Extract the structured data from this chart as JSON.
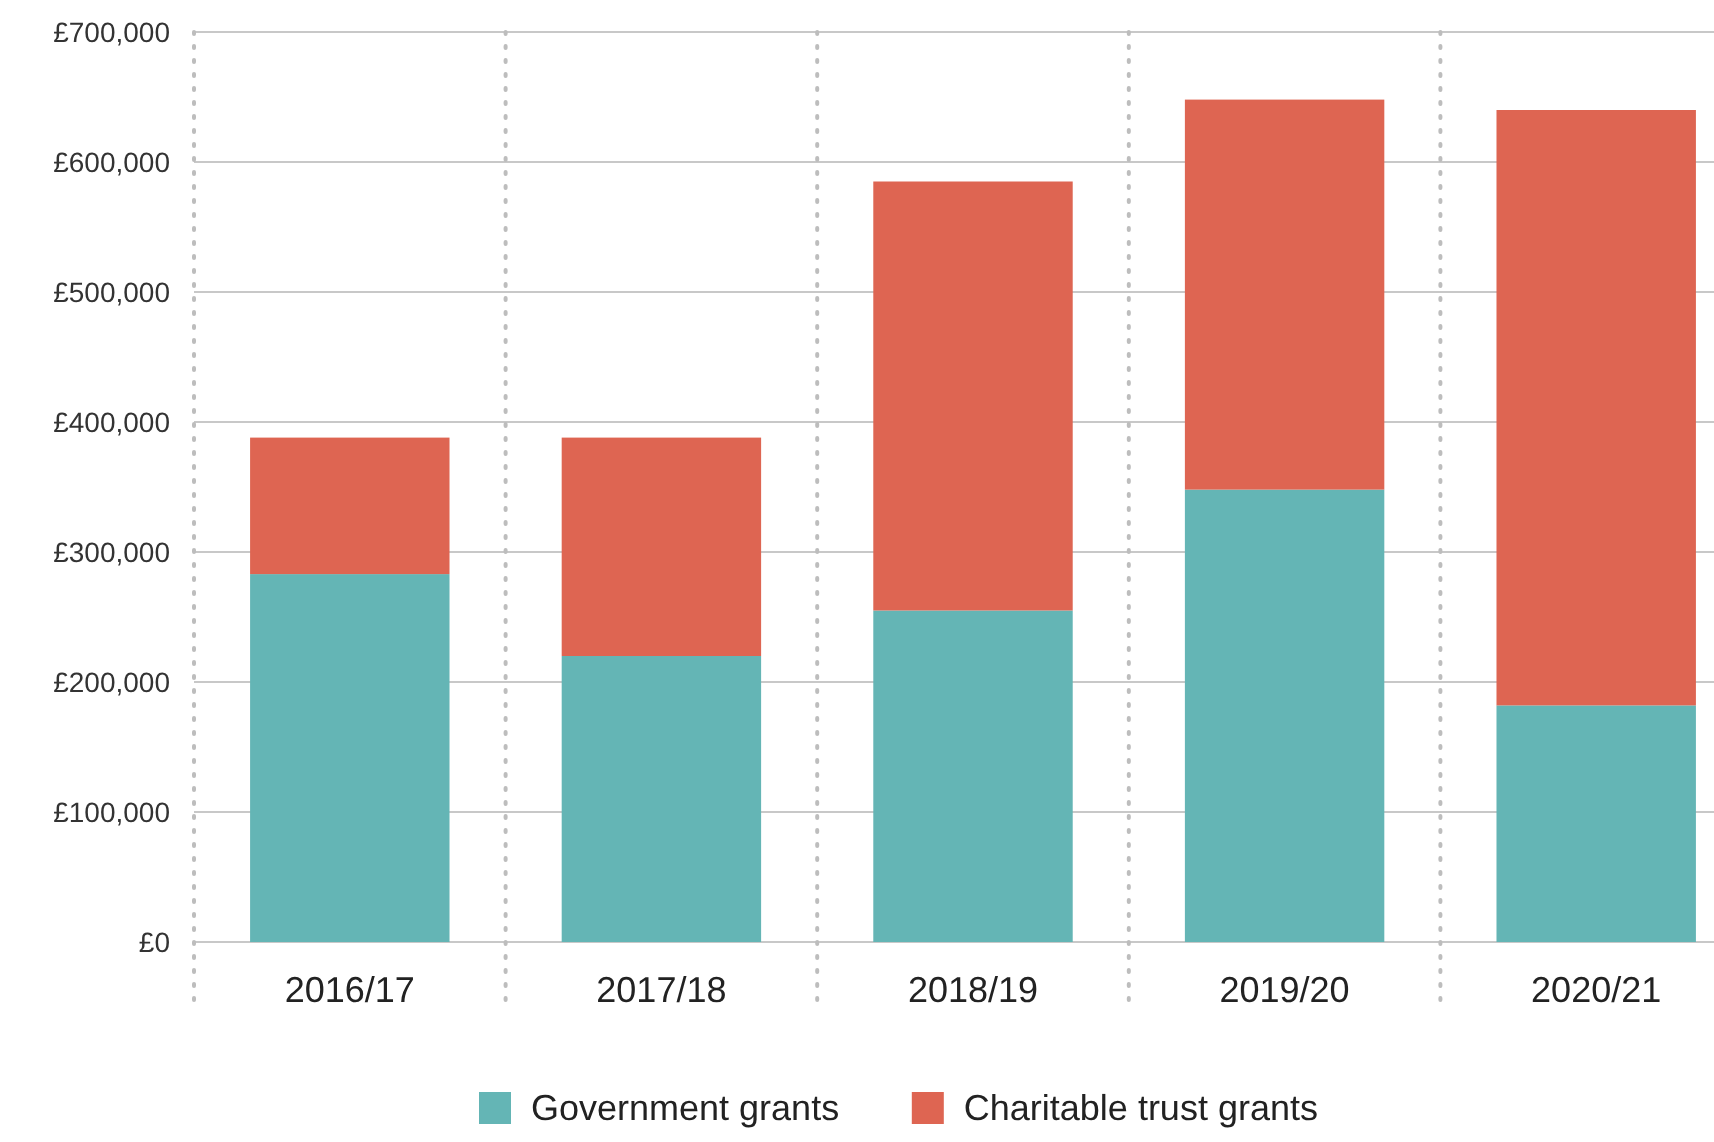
{
  "chart_data": {
    "type": "bar",
    "stacked": true,
    "categories": [
      "2016/17",
      "2017/18",
      "2018/19",
      "2019/20",
      "2020/21"
    ],
    "series": [
      {
        "name": "Government grants",
        "color": "#64b5b5",
        "values": [
          283000,
          220000,
          255000,
          348000,
          182000
        ]
      },
      {
        "name": "Charitable trust grants",
        "color": "#de6552",
        "values": [
          105000,
          168000,
          330000,
          300000,
          458000
        ]
      }
    ],
    "ylim": [
      0,
      700000
    ],
    "yticks": [
      {
        "value": 0,
        "label": "£0"
      },
      {
        "value": 100000,
        "label": "£100,000"
      },
      {
        "value": 200000,
        "label": "£200,000"
      },
      {
        "value": 300000,
        "label": "£300,000"
      },
      {
        "value": 400000,
        "label": "£400,000"
      },
      {
        "value": 500000,
        "label": "£500,000"
      },
      {
        "value": 600000,
        "label": "£600,000"
      },
      {
        "value": 700000,
        "label": "£700,000"
      }
    ],
    "grid": true,
    "legend": "bottom"
  }
}
